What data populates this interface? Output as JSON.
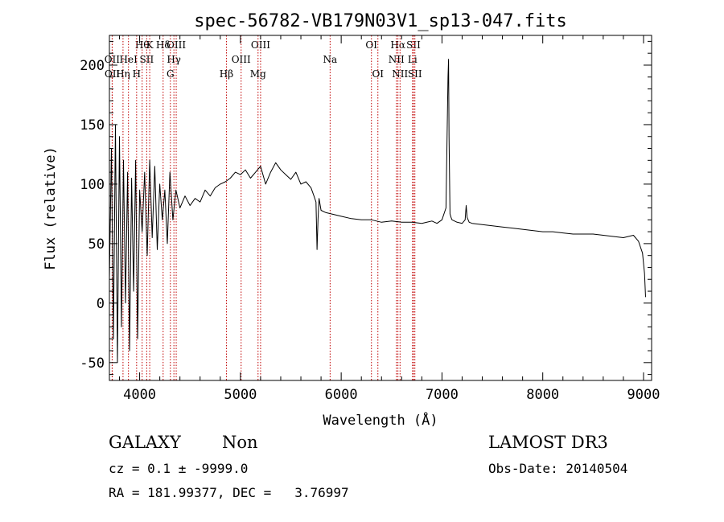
{
  "chart_data": {
    "type": "line",
    "title": "spec-56782-VB179N03V1_sp13-047.fits",
    "xlabel": "Wavelength (Å)",
    "ylabel": "Flux (relative)",
    "xlim": [
      3700,
      9080
    ],
    "ylim": [
      -65,
      225
    ],
    "xticks": [
      4000,
      5000,
      6000,
      7000,
      8000,
      9000
    ],
    "yticks": [
      -50,
      0,
      50,
      100,
      150,
      200
    ],
    "grid": false,
    "series": [
      {
        "name": "flux",
        "x": [
          3700,
          3720,
          3740,
          3760,
          3780,
          3800,
          3820,
          3840,
          3860,
          3880,
          3900,
          3920,
          3940,
          3960,
          3980,
          4000,
          4025,
          4050,
          4075,
          4100,
          4125,
          4150,
          4175,
          4200,
          4225,
          4250,
          4275,
          4300,
          4330,
          4360,
          4400,
          4450,
          4500,
          4550,
          4600,
          4650,
          4700,
          4750,
          4800,
          4850,
          4900,
          4950,
          5000,
          5050,
          5100,
          5150,
          5200,
          5250,
          5300,
          5350,
          5400,
          5450,
          5500,
          5550,
          5600,
          5650,
          5700,
          5730,
          5750,
          5760,
          5770,
          5780,
          5800,
          5850,
          5900,
          5950,
          6000,
          6100,
          6200,
          6300,
          6400,
          6500,
          6600,
          6700,
          6800,
          6850,
          6900,
          6950,
          7000,
          7040,
          7060,
          7065,
          7070,
          7080,
          7090,
          7100,
          7150,
          7200,
          7230,
          7240,
          7250,
          7270,
          7300,
          7400,
          7500,
          7600,
          7700,
          7800,
          7900,
          8000,
          8100,
          8200,
          8300,
          8400,
          8500,
          8600,
          8700,
          8800,
          8900,
          8950,
          8990,
          9010,
          9020
        ],
        "values": [
          20,
          130,
          -30,
          150,
          -50,
          140,
          -20,
          120,
          0,
          110,
          -40,
          105,
          10,
          120,
          -30,
          95,
          60,
          110,
          40,
          120,
          55,
          115,
          45,
          100,
          70,
          95,
          50,
          110,
          70,
          95,
          80,
          90,
          82,
          88,
          85,
          95,
          90,
          97,
          100,
          102,
          105,
          110,
          108,
          112,
          105,
          110,
          115,
          100,
          110,
          118,
          112,
          108,
          104,
          110,
          100,
          102,
          97,
          90,
          85,
          45,
          70,
          88,
          78,
          76,
          75,
          74,
          73,
          71,
          70,
          70,
          68,
          69,
          68,
          68,
          67,
          68,
          69,
          67,
          70,
          80,
          190,
          205,
          140,
          75,
          72,
          70,
          68,
          67,
          70,
          82,
          72,
          68,
          67,
          66,
          65,
          64,
          63,
          62,
          61,
          60,
          60,
          59,
          58,
          58,
          58,
          57,
          56,
          55,
          57,
          52,
          42,
          25,
          5
        ]
      }
    ],
    "spectral_lines": [
      {
        "wavelength": 4025,
        "label": "Hθ",
        "row": 0
      },
      {
        "wavelength": 4100,
        "label": "K",
        "row": 0
      },
      {
        "wavelength": 4233,
        "label": "Hδ",
        "row": 0
      },
      {
        "wavelength": 4363,
        "label": "OIII",
        "row": 0
      },
      {
        "wavelength": 5200,
        "label": "OIII",
        "row": 0
      },
      {
        "wavelength": 6300,
        "label": "OI",
        "row": 0
      },
      {
        "wavelength": 6563,
        "label": "Hα",
        "row": 0
      },
      {
        "wavelength": 6717,
        "label": "SII",
        "row": 0
      },
      {
        "wavelength": 3727,
        "label": "OII",
        "row": 1
      },
      {
        "wavelength": 3889,
        "label": "HeI",
        "row": 1
      },
      {
        "wavelength": 4070,
        "label": "SII",
        "row": 1
      },
      {
        "wavelength": 4340,
        "label": "Hγ",
        "row": 1
      },
      {
        "wavelength": 5007,
        "label": "OIII",
        "row": 1
      },
      {
        "wavelength": 5890,
        "label": "Na",
        "row": 1
      },
      {
        "wavelength": 6548,
        "label": "NII",
        "row": 1
      },
      {
        "wavelength": 6708,
        "label": "Li",
        "row": 1
      },
      {
        "wavelength": 3729,
        "label": "OII",
        "row": 2
      },
      {
        "wavelength": 3835,
        "label": "Hη",
        "row": 2
      },
      {
        "wavelength": 3970,
        "label": "H",
        "row": 2
      },
      {
        "wavelength": 4305,
        "label": "G",
        "row": 2
      },
      {
        "wavelength": 4861,
        "label": "Hβ",
        "row": 2
      },
      {
        "wavelength": 5175,
        "label": "Mg",
        "row": 2
      },
      {
        "wavelength": 6364,
        "label": "OI",
        "row": 2
      },
      {
        "wavelength": 6584,
        "label": "NII",
        "row": 2
      },
      {
        "wavelength": 6731,
        "label": "SII",
        "row": 2
      }
    ]
  },
  "info": {
    "object_class": "GALAXY",
    "subclass": "Non",
    "survey": "LAMOST DR3",
    "cz_line": "cz = 0.1 ± -9999.0",
    "obs_date_line": "Obs-Date: 20140504",
    "radec_line": "RA = 181.99377, DEC =   3.76997"
  }
}
